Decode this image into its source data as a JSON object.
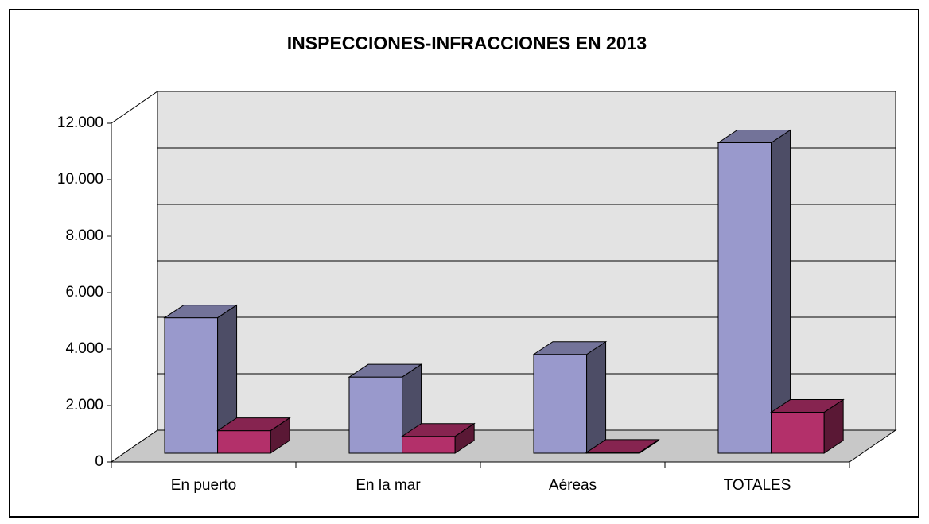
{
  "chart_data": {
    "type": "bar3d",
    "title": "INSPECCIONES-INFRACCIONES EN 2013",
    "categories": [
      "En puerto",
      "En la mar",
      "Aéreas",
      "TOTALES"
    ],
    "series": [
      {
        "color": "#9999cc",
        "values": [
          4800,
          2700,
          3500,
          11000
        ]
      },
      {
        "color": "#b3306a",
        "values": [
          800,
          600,
          30,
          1450
        ]
      }
    ],
    "ylim": [
      0,
      12000
    ],
    "yticks": [
      0,
      {
        "value": 2000,
        "label": "2.000"
      },
      {
        "value": 4000,
        "label": "4.000"
      },
      {
        "value": 6000,
        "label": "6.000"
      },
      {
        "value": 8000,
        "label": "8.000"
      },
      {
        "value": 10000,
        "label": "10.000"
      },
      {
        "value": 12000,
        "label": "12.000"
      }
    ],
    "grid": true
  }
}
